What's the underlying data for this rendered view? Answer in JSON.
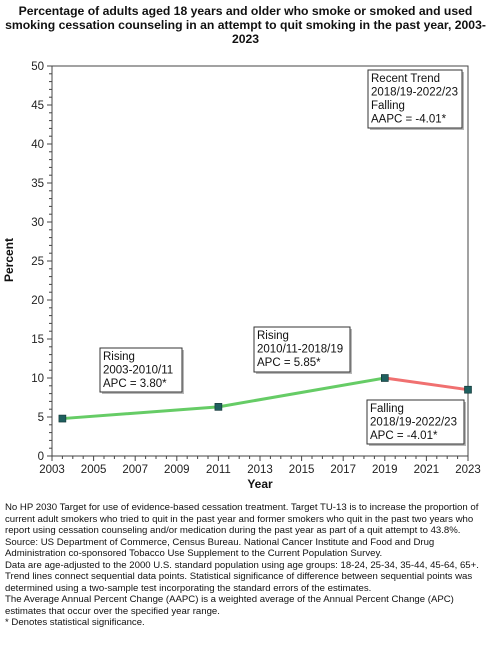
{
  "chart_data": {
    "type": "line",
    "title": "Percentage of  adults  aged 18 years and older who smoke or smoked and used smoking cessation counseling in an attempt to quit smoking in the past year, 2003-2023",
    "xlabel": "Year",
    "ylabel": "Percent",
    "xlim": [
      2003,
      2023
    ],
    "ylim": [
      0,
      50
    ],
    "x_ticks": [
      "2003",
      "2005",
      "2007",
      "2009",
      "2011",
      "2013",
      "2015",
      "2017",
      "2019",
      "2021",
      "2023"
    ],
    "y_ticks": [
      "0",
      "5",
      "10",
      "15",
      "20",
      "25",
      "30",
      "35",
      "40",
      "45",
      "50"
    ],
    "grid": false,
    "points": [
      {
        "x": 2003.5,
        "y": 4.8
      },
      {
        "x": 2011,
        "y": 6.3
      },
      {
        "x": 2019,
        "y": 10.0
      },
      {
        "x": 2023,
        "y": 8.5
      }
    ],
    "series": [
      {
        "color": "#66cc66",
        "x": [
          2003.5,
          2011,
          2019
        ],
        "values": [
          4.8,
          6.3,
          10.0
        ]
      },
      {
        "color": "#f07070",
        "x": [
          2019,
          2023
        ],
        "values": [
          10.0,
          8.5
        ]
      }
    ],
    "marker_color": "#1f5f5f",
    "annotations": [
      {
        "lines": [
          "Rising",
          "2003-2010/11",
          "APC =  3.80*"
        ]
      },
      {
        "lines": [
          "Rising",
          "2010/11-2018/19",
          "APC =  5.85*"
        ]
      },
      {
        "lines": [
          "Falling",
          "2018/19-2022/23",
          "APC = -4.01*"
        ]
      },
      {
        "lines": [
          "Recent Trend",
          "2018/19-2022/23",
          "Falling",
          "AAPC = -4.01*"
        ]
      }
    ]
  },
  "footnotes": [
    "No HP 2030 Target for use of evidence-based cessation treatment. Target TU-13 is to increase the proportion of current adult smokers who tried to quit in the past year and former smokers who quit in the past two years who report using cessation counseling and/or medication during the past year as part of a quit attempt to 43.8%.",
    "Source: US Department of Commerce, Census Bureau. National Cancer Institute and Food and Drug Administration co-sponsored Tobacco Use Supplement to the Current Population Survey.",
    "Data are age-adjusted to the 2000 U.S. standard population using age groups: 18-24, 25-34, 35-44, 45-64, 65+.",
    "Trend lines connect sequential data points. Statistical significance of difference between sequential points was determined using a two-sample test incorporating the standard errors of the estimates.",
    "The Average Annual Percent Change (AAPC) is a weighted average of the Annual Percent Change (APC) estimates that occur over the specified year range.",
    "* Denotes statistical significance."
  ]
}
